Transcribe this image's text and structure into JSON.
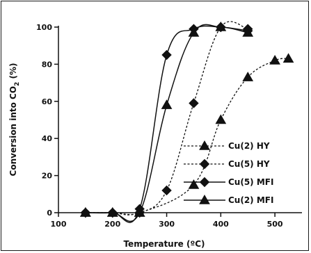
{
  "chart_data": {
    "type": "line",
    "xlabel_main": "Temperature (",
    "xlabel_unit": "ºC)",
    "ylabel_main": "Conversion  into CO",
    "ylabel_sub": "2",
    "ylabel_end": " (%)",
    "xlim": [
      100,
      550
    ],
    "ylim": [
      0,
      100
    ],
    "x_ticks": [
      "100",
      "200",
      "300",
      "400",
      "500"
    ],
    "y_ticks": [
      "0",
      "20",
      "40",
      "60",
      "80",
      "100"
    ],
    "grid": false,
    "legend_placement": "lower-right",
    "series": [
      {
        "name": "Cu(2) HY",
        "marker": "triangle",
        "line": "dashed",
        "x": [
          150,
          200,
          250,
          350,
          400,
          450,
          500,
          525
        ],
        "y": [
          0,
          0,
          0,
          15,
          50,
          73,
          82,
          83
        ]
      },
      {
        "name": "Cu(5) HY",
        "marker": "diamond",
        "line": "dashed",
        "x": [
          150,
          200,
          250,
          300,
          350,
          400,
          450
        ],
        "y": [
          0,
          0,
          0,
          12,
          59,
          100,
          99
        ]
      },
      {
        "name": "Cu(5) MFI",
        "marker": "diamond",
        "line": "solid",
        "x": [
          150,
          200,
          250,
          300,
          350,
          400,
          450
        ],
        "y": [
          0,
          0,
          2,
          85,
          99,
          100,
          98
        ]
      },
      {
        "name": "Cu(2) MFI",
        "marker": "triangle",
        "line": "solid",
        "x": [
          150,
          200,
          250,
          300,
          350,
          400,
          450
        ],
        "y": [
          0,
          0,
          0,
          58,
          97,
          100,
          97
        ]
      }
    ]
  }
}
